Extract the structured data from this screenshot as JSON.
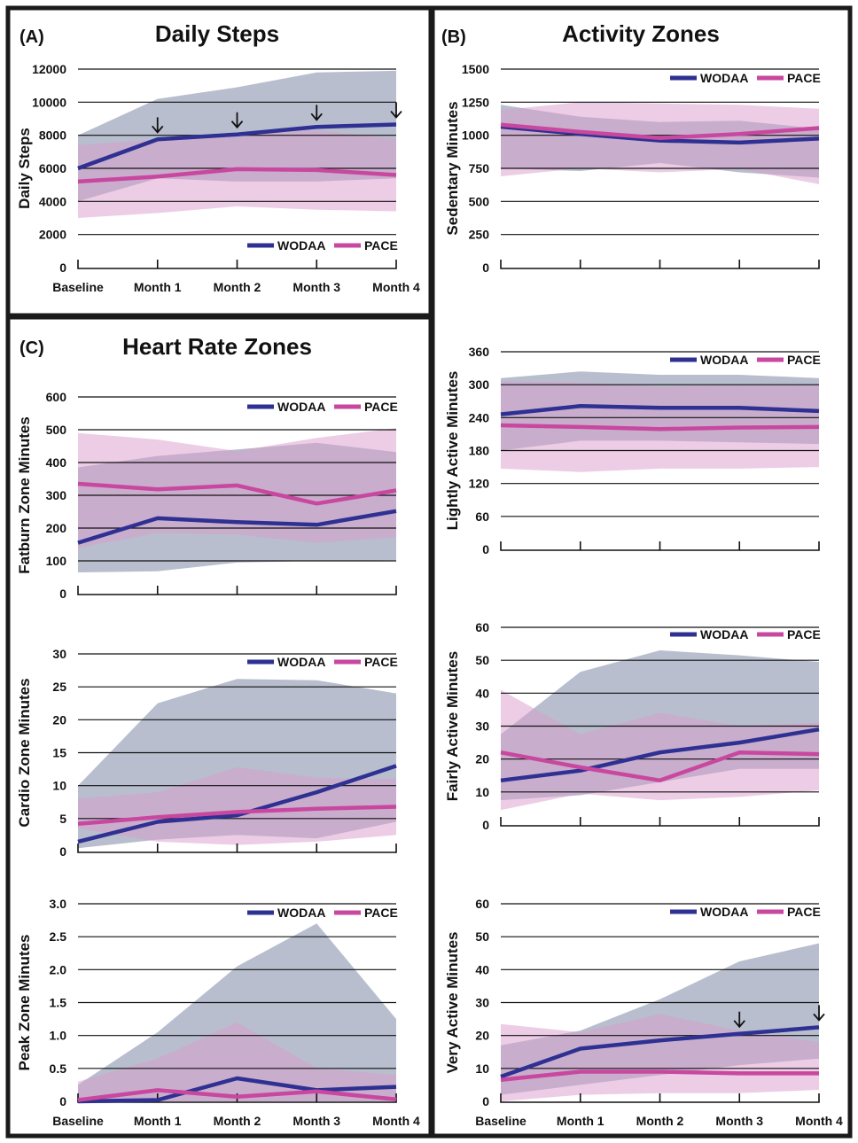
{
  "colors": {
    "wodaa_line": "#2e3192",
    "pace_line": "#c8479f",
    "wodaa_band": "#8893ad",
    "pace_band": "#d99bcb"
  },
  "x_categories": [
    "Baseline",
    "Month 1",
    "Month 2",
    "Month 3",
    "Month 4"
  ],
  "panels": [
    {
      "letter": "(A)",
      "title": "Daily Steps"
    },
    {
      "letter": "(B)",
      "title": "Activity Zones"
    },
    {
      "letter": "(C)",
      "title": "Heart Rate Zones"
    }
  ],
  "legend": {
    "wodaa": "WODAA",
    "pace": "PACE"
  },
  "chart_data": [
    {
      "type": "line",
      "panel": "(A)",
      "ylabel": "Daily Steps",
      "ylim": [
        0,
        12000
      ],
      "yticks": [
        "0",
        "2000",
        "4000",
        "6000",
        "8000",
        "10000",
        "12000"
      ],
      "categories": [
        "Baseline",
        "Month 1",
        "Month 2",
        "Month 3",
        "Month 4"
      ],
      "show_x_labels": true,
      "arrows": [
        1,
        2,
        3,
        4
      ],
      "series": [
        {
          "name": "WODAA",
          "values": [
            6000,
            7750,
            8050,
            8500,
            8650
          ],
          "lower": [
            4000,
            5400,
            5200,
            5200,
            5400
          ],
          "upper": [
            8000,
            10200,
            10900,
            11800,
            11900
          ]
        },
        {
          "name": "PACE",
          "values": [
            5200,
            5500,
            5950,
            5900,
            5600
          ],
          "lower": [
            3000,
            3300,
            3700,
            3500,
            3400
          ],
          "upper": [
            7400,
            7750,
            8150,
            8300,
            7800
          ]
        }
      ]
    },
    {
      "type": "line",
      "panel": "(B)",
      "ylabel": "Sedentary Minutes",
      "ylim": [
        0,
        1500
      ],
      "yticks": [
        "0",
        "250",
        "500",
        "750",
        "1000",
        "1250",
        "1500"
      ],
      "categories": [
        "Baseline",
        "Month 1",
        "Month 2",
        "Month 3",
        "Month 4"
      ],
      "show_x_labels": false,
      "arrows": [],
      "series": [
        {
          "name": "WODAA",
          "values": [
            1065,
            1010,
            960,
            945,
            975
          ],
          "lower": [
            750,
            730,
            790,
            720,
            680
          ],
          "upper": [
            1230,
            1140,
            1100,
            1110,
            1050
          ]
        },
        {
          "name": "PACE",
          "values": [
            1080,
            1025,
            980,
            1010,
            1055
          ],
          "lower": [
            690,
            750,
            720,
            745,
            630
          ],
          "upper": [
            1190,
            1250,
            1240,
            1230,
            1200
          ]
        }
      ]
    },
    {
      "type": "line",
      "panel": "(B)",
      "ylabel": "Lightly Active Minutes",
      "ylim": [
        0,
        360
      ],
      "yticks": [
        "0",
        "60",
        "120",
        "180",
        "240",
        "300",
        "360"
      ],
      "categories": [
        "Baseline",
        "Month 1",
        "Month 2",
        "Month 3",
        "Month 4"
      ],
      "show_x_labels": false,
      "arrows": [],
      "series": [
        {
          "name": "WODAA",
          "values": [
            246,
            261,
            258,
            258,
            252
          ],
          "lower": [
            180,
            198,
            198,
            195,
            192
          ],
          "upper": [
            312,
            324,
            318,
            318,
            312
          ]
        },
        {
          "name": "PACE",
          "values": [
            226,
            223,
            219,
            222,
            223
          ],
          "lower": [
            147,
            141,
            147,
            147,
            150
          ],
          "upper": [
            306,
            304,
            296,
            301,
            300
          ]
        }
      ]
    },
    {
      "type": "line",
      "panel": "(B)",
      "ylabel": "Fairly Active Minutes",
      "ylim": [
        0,
        60
      ],
      "yticks": [
        "0",
        "10",
        "20",
        "30",
        "40",
        "50",
        "60"
      ],
      "categories": [
        "Baseline",
        "Month 1",
        "Month 2",
        "Month 3",
        "Month 4"
      ],
      "show_x_labels": false,
      "arrows": [],
      "series": [
        {
          "name": "WODAA",
          "values": [
            13.5,
            16.5,
            22,
            25,
            29
          ],
          "lower": [
            7.5,
            9,
            13,
            17,
            17
          ],
          "upper": [
            27.5,
            46.5,
            53,
            51.5,
            49.5
          ]
        },
        {
          "name": "PACE",
          "values": [
            22,
            17.5,
            13.5,
            22,
            21.5
          ],
          "lower": [
            4.5,
            9.5,
            7.5,
            8.5,
            10.5
          ],
          "upper": [
            41,
            27.5,
            34,
            30,
            31
          ]
        }
      ]
    },
    {
      "type": "line",
      "panel": "(B)",
      "ylabel": "Very Active Minutes",
      "ylim": [
        0,
        60
      ],
      "yticks": [
        "0",
        "10",
        "20",
        "30",
        "40",
        "50",
        "60"
      ],
      "categories": [
        "Baseline",
        "Month 1",
        "Month 2",
        "Month 3",
        "Month 4"
      ],
      "show_x_labels": true,
      "arrows": [
        3,
        4
      ],
      "series": [
        {
          "name": "WODAA",
          "values": [
            7.5,
            16,
            18.5,
            20.5,
            22.5
          ],
          "lower": [
            2,
            5,
            8,
            11,
            13
          ],
          "upper": [
            17,
            21.5,
            31,
            42.5,
            48
          ]
        },
        {
          "name": "PACE",
          "values": [
            6.5,
            9,
            9,
            8.5,
            8.5
          ],
          "lower": [
            0,
            2,
            2.5,
            2.5,
            3.5
          ],
          "upper": [
            23.5,
            21,
            26.5,
            21.5,
            18
          ]
        }
      ]
    },
    {
      "type": "line",
      "panel": "(C)",
      "ylabel": "Fatburn Zone Minutes",
      "ylim": [
        0,
        600
      ],
      "yticks": [
        "0",
        "100",
        "200",
        "300",
        "400",
        "500",
        "600"
      ],
      "categories": [
        "Baseline",
        "Month 1",
        "Month 2",
        "Month 3",
        "Month 4"
      ],
      "show_x_labels": false,
      "arrows": [],
      "series": [
        {
          "name": "WODAA",
          "values": [
            155,
            230,
            218,
            210,
            252
          ],
          "lower": [
            65,
            68,
            95,
            100,
            102
          ],
          "upper": [
            385,
            420,
            440,
            460,
            432
          ]
        },
        {
          "name": "PACE",
          "values": [
            335,
            318,
            330,
            275,
            315
          ],
          "lower": [
            140,
            185,
            180,
            155,
            172
          ],
          "upper": [
            490,
            470,
            435,
            475,
            505
          ]
        }
      ]
    },
    {
      "type": "line",
      "panel": "(C)",
      "ylabel": "Cardio Zone Minutes",
      "ylim": [
        0,
        30
      ],
      "yticks": [
        "0",
        "5",
        "10",
        "15",
        "20",
        "25",
        "30"
      ],
      "categories": [
        "Baseline",
        "Month 1",
        "Month 2",
        "Month 3",
        "Month 4"
      ],
      "show_x_labels": false,
      "arrows": [],
      "series": [
        {
          "name": "WODAA",
          "values": [
            1.5,
            4.5,
            5.5,
            9,
            13
          ],
          "lower": [
            0.5,
            1.8,
            2.5,
            2,
            4.5
          ],
          "upper": [
            10,
            22.5,
            26.2,
            26,
            24
          ]
        },
        {
          "name": "PACE",
          "values": [
            4.2,
            5.2,
            6,
            6.5,
            6.8
          ],
          "lower": [
            3.5,
            1.5,
            1,
            1.5,
            2.5
          ],
          "upper": [
            8,
            9,
            12.8,
            11.2,
            11
          ]
        }
      ]
    },
    {
      "type": "line",
      "panel": "(C)",
      "ylabel": "Peak Zone Minutes",
      "ylim": [
        0,
        3.0
      ],
      "yticks": [
        "0",
        "0.5",
        "1.0",
        "1.5",
        "2.0",
        "2.5",
        "3.0"
      ],
      "categories": [
        "Baseline",
        "Month 1",
        "Month 2",
        "Month 3",
        "Month 4"
      ],
      "show_x_labels": true,
      "arrows": [],
      "series": [
        {
          "name": "WODAA",
          "values": [
            0,
            0.02,
            0.35,
            0.17,
            0.22
          ],
          "lower": [
            0,
            0,
            0,
            0,
            0
          ],
          "upper": [
            0.25,
            1.05,
            2.05,
            2.7,
            1.25
          ]
        },
        {
          "name": "PACE",
          "values": [
            0.02,
            0.17,
            0.07,
            0.15,
            0.03
          ],
          "lower": [
            0,
            0,
            0,
            0,
            0
          ],
          "upper": [
            0.3,
            0.65,
            1.2,
            0.5,
            0.4
          ]
        }
      ]
    }
  ]
}
